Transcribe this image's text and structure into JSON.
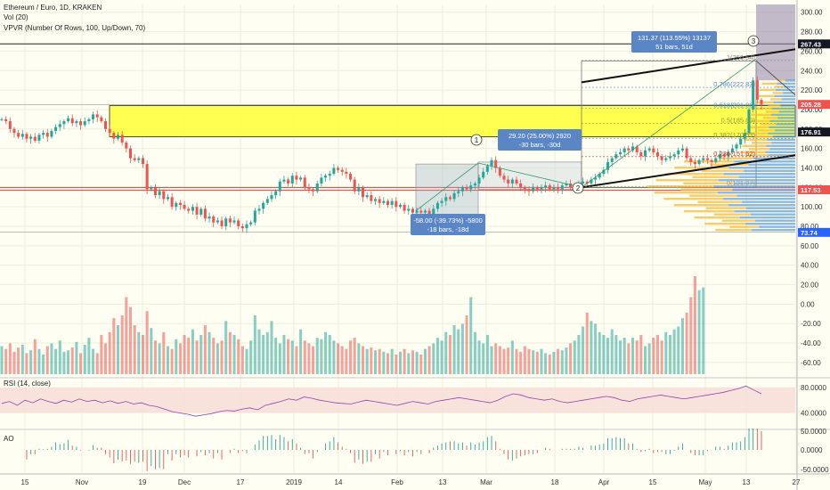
{
  "header": {
    "symbol_line": "Ethereum / Euro, 1D, KRAKEN",
    "vol_line": "Vol (20)",
    "vpvr_line": "VPVR (Number Of Rows, 100, Up/Down, 70)",
    "rsi_line": "RSI (14, close)",
    "ao_line": "AO"
  },
  "colors": {
    "background": "#fefef2",
    "up": "#26a69a",
    "down": "#ef5350",
    "yellow_zone": "#ffff33",
    "rsi_line": "#8e44ad",
    "rsi_band": "#f6dcd6",
    "grid": "#eeeedd",
    "annotation_bg": "#5b86c5",
    "vpvr_up": "#5b9bd5",
    "vpvr_down": "#f5c04a"
  },
  "chart_data": {
    "type": "candlestick",
    "y_ticks": [
      "300.00",
      "280.00",
      "260.00",
      "240.00",
      "220.00",
      "200.00",
      "180.00",
      "160.00",
      "140.00",
      "120.00",
      "100.00",
      "80.00",
      "60.00",
      "40.00",
      "20.00",
      "0.00",
      "-20.00",
      "-40.00",
      "-60.00"
    ],
    "ylim": [
      -72,
      308
    ],
    "x_ticks": [
      "15",
      "Nov",
      "19",
      "Dec",
      "17",
      "2019",
      "14",
      "Feb",
      "13",
      "Mar",
      "18",
      "Apr",
      "15",
      "May",
      "13",
      "27"
    ],
    "price_tags": [
      {
        "label": "267.43",
        "value": 267.43,
        "color": "#131722"
      },
      {
        "label": "205.28",
        "value": 205.28,
        "color": "#ef5350"
      },
      {
        "label": "176.91",
        "value": 176.91,
        "color": "#131722"
      },
      {
        "label": "117.53",
        "value": 117.53,
        "color": "#ef5350"
      },
      {
        "label": "73.74",
        "value": 73.74,
        "color": "#2962ff"
      }
    ],
    "fib_levels": [
      {
        "label": "1(250.54)",
        "value": 250.5
      },
      {
        "label": "0.786(222.83)",
        "value": 222.8
      },
      {
        "label": "0.618(201.08)",
        "value": 201.1
      },
      {
        "label": "0.5(185.80)",
        "value": 185.8
      },
      {
        "label": "0.382(170.53)",
        "value": 170.5
      },
      {
        "label": "0.236(151.62)",
        "value": 151.6
      },
      {
        "label": "0(121.07)",
        "value": 121.1
      }
    ],
    "annotations": [
      {
        "line1": "-58.00 (-39.73%) -5800",
        "line2": "-18 bars, -18d"
      },
      {
        "line1": "29.20 (25.00%) 2920",
        "line2": "-30 bars, -30d"
      },
      {
        "line1": "131.37 (113.55%) 13137",
        "line2": "51 bars, 51d"
      }
    ],
    "wave_labels": [
      "1",
      "2",
      "3"
    ],
    "rsi_ticks": [
      "80.0000",
      "40.0000"
    ],
    "ao_ticks": [
      "50.0000",
      "0.0000",
      "-50.0000"
    ],
    "close_series": [
      190,
      188,
      180,
      176,
      172,
      175,
      170,
      172,
      168,
      174,
      176,
      172,
      178,
      182,
      185,
      188,
      191,
      186,
      188,
      184,
      188,
      190,
      195,
      192,
      188,
      180,
      176,
      170,
      174,
      166,
      160,
      150,
      148,
      150,
      144,
      118,
      120,
      112,
      116,
      108,
      110,
      100,
      104,
      102,
      98,
      96,
      100,
      92,
      98,
      88,
      90,
      84,
      86,
      80,
      88,
      84,
      86,
      80,
      78,
      82,
      84,
      96,
      98,
      104,
      108,
      112,
      116,
      126,
      128,
      124,
      132,
      128,
      130,
      120,
      118,
      116,
      124,
      130,
      132,
      134,
      140,
      138,
      136,
      134,
      128,
      116,
      120,
      110,
      112,
      106,
      108,
      104,
      106,
      102,
      106,
      100,
      102,
      96,
      98,
      94,
      96,
      94,
      96,
      92,
      98,
      104,
      106,
      110,
      108,
      114,
      116,
      120,
      118,
      122,
      124,
      130,
      136,
      142,
      148,
      140,
      132,
      128,
      124,
      128,
      124,
      120,
      118,
      116,
      120,
      118,
      120,
      122,
      118,
      120,
      118,
      122,
      124,
      120,
      122,
      124,
      126,
      124,
      128,
      130,
      134,
      138,
      146,
      150,
      154,
      156,
      160,
      158,
      162,
      156,
      152,
      158,
      160,
      156,
      152,
      148,
      150,
      152,
      154,
      158,
      160,
      150,
      146,
      144,
      148,
      150,
      148,
      146,
      150,
      154,
      152,
      156,
      160,
      164,
      170,
      176,
      200,
      230,
      210,
      205
    ],
    "volume_series": [
      20,
      18,
      22,
      16,
      19,
      21,
      15,
      17,
      25,
      18,
      14,
      20,
      22,
      18,
      24,
      16,
      17,
      19,
      23,
      15,
      21,
      26,
      18,
      15,
      28,
      22,
      30,
      40,
      35,
      42,
      55,
      48,
      35,
      30,
      28,
      45,
      33,
      24,
      22,
      30,
      20,
      18,
      25,
      22,
      28,
      26,
      32,
      24,
      28,
      35,
      30,
      26,
      22,
      24,
      38,
      30,
      28,
      25,
      20,
      18,
      24,
      42,
      32,
      28,
      30,
      38,
      26,
      22,
      28,
      25,
      24,
      20,
      32,
      24,
      22,
      20,
      26,
      25,
      30,
      28,
      24,
      22,
      20,
      18,
      24,
      26,
      22,
      20,
      18,
      19,
      17,
      18,
      16,
      15,
      18,
      14,
      16,
      18,
      15,
      17,
      16,
      14,
      18,
      20,
      22,
      26,
      24,
      30,
      28,
      35,
      32,
      36,
      42,
      55,
      30,
      24,
      22,
      28,
      20,
      22,
      20,
      18,
      19,
      24,
      18,
      16,
      20,
      18,
      17,
      16,
      18,
      15,
      14,
      16,
      18,
      17,
      19,
      22,
      24,
      28,
      34,
      44,
      38,
      36,
      30,
      28,
      26,
      32,
      28,
      24,
      26,
      22,
      26,
      24,
      28,
      20,
      22,
      26,
      28,
      24,
      30,
      28,
      32,
      34,
      40,
      44,
      55,
      70,
      60,
      62
    ],
    "rsi_series": [
      55,
      58,
      52,
      60,
      56,
      62,
      58,
      55,
      60,
      57,
      62,
      58,
      60,
      56,
      59,
      55,
      58,
      54,
      56,
      52,
      50,
      46,
      42,
      40,
      38,
      35,
      37,
      39,
      42,
      44,
      43,
      46,
      48,
      45,
      52,
      55,
      58,
      62,
      60,
      65,
      63,
      60,
      58,
      56,
      55,
      54,
      57,
      60,
      58,
      56,
      54,
      52,
      55,
      58,
      56,
      54,
      58,
      60,
      62,
      64,
      62,
      60,
      58,
      56,
      60,
      66,
      70,
      68,
      64,
      62,
      60,
      62,
      58,
      56,
      58,
      60,
      62,
      64,
      66,
      64,
      60,
      58,
      62,
      64,
      66,
      68,
      66,
      64,
      62,
      64,
      66,
      68,
      70,
      72,
      75,
      78,
      82,
      76,
      70
    ]
  }
}
